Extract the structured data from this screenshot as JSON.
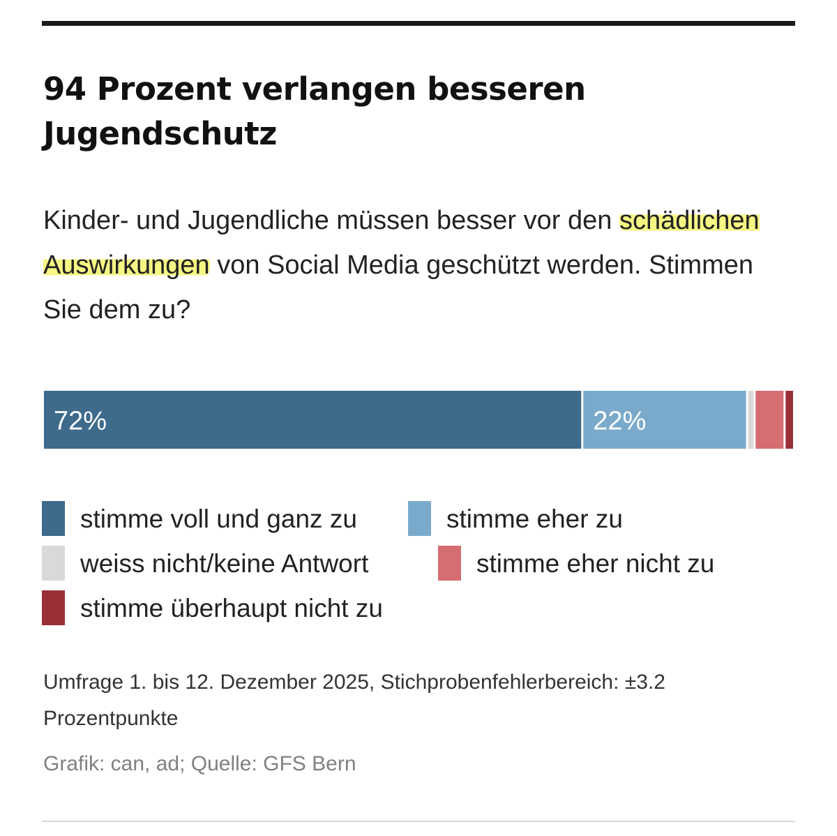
{
  "chart_data": {
    "type": "bar",
    "orientation": "horizontal-stacked-100",
    "title": "94 Prozent verlangen besseren Jugendschutz",
    "subtitle_before": "Kinder- und Jugendliche müssen besser vor den ",
    "subtitle_highlight": "schädlichen Auswirkungen",
    "subtitle_after": " von Social Media geschützt werden. Stimmen Sie dem zu?",
    "xlim": [
      0,
      100
    ],
    "grid": false,
    "legend_position": "bottom",
    "series": [
      {
        "name": "stimme voll und ganz zu",
        "value": 72,
        "label": "72%",
        "color": "#3e6a8c"
      },
      {
        "name": "stimme eher zu",
        "value": 22,
        "label": "22%",
        "color": "#7aaacb"
      },
      {
        "name": "weiss nicht/keine Antwort",
        "value": 1,
        "label": "",
        "color": "#d9d9d9"
      },
      {
        "name": "stimme eher nicht zu",
        "value": 4,
        "label": "",
        "color": "#d56d72"
      },
      {
        "name": "stimme überhaupt nicht zu",
        "value": 1,
        "label": "",
        "color": "#9a2f37"
      }
    ],
    "note": "Umfrage 1. bis 12. Dezember 2025, Stichprobenfehlerbereich: ±3.2 Prozentpunkte",
    "source": "Grafik: can, ad; Quelle: GFS Bern"
  },
  "colors": {
    "highlight": "#f5f56e",
    "bar_gap": "#ffffff",
    "rule": "#1a1a1a"
  }
}
